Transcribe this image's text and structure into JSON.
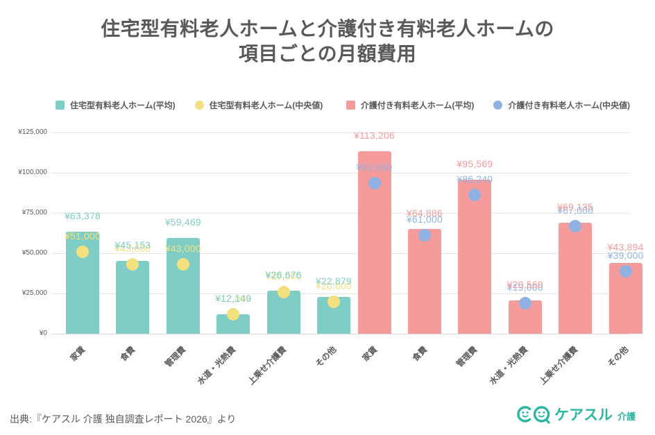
{
  "title": {
    "line1": "住宅型有料老人ホームと介護付き有料老人ホームの",
    "line2": "項目ごとの月額費用"
  },
  "colors": {
    "residential_avg": "#7ECEC5",
    "residential_median": "#F5E07F",
    "nursing_avg": "#F59B9B",
    "nursing_median": "#8FB2E2",
    "text": "#595959",
    "gridline": "#e4e4e4",
    "logo": "#2CB5A0"
  },
  "legend": [
    {
      "label": "住宅型有料老人ホーム(平均)",
      "shape": "square",
      "color": "#7ECEC5"
    },
    {
      "label": "住宅型有料老人ホーム(中央値)",
      "shape": "circle",
      "color": "#F5E07F"
    },
    {
      "label": "介護付き有料老人ホーム(平均)",
      "shape": "square",
      "color": "#F59B9B"
    },
    {
      "label": "介護付き有料老人ホーム(中央値)",
      "shape": "circle",
      "color": "#8FB2E2"
    }
  ],
  "chart_data": {
    "type": "bar",
    "title": "住宅型有料老人ホームと介護付き有料老人ホームの項目ごとの月額費用",
    "categories": [
      "家賃",
      "食費",
      "管理費",
      "水道・光熱費",
      "上乗せ介護費",
      "その他"
    ],
    "groups": [
      {
        "name": "住宅型有料老人ホーム",
        "bar_series": {
          "name": "住宅型有料老人ホーム(平均)",
          "color": "#7ECEC5",
          "values": [
            63378,
            45153,
            59469,
            12149,
            26676,
            22879
          ],
          "labels": [
            "¥63,378",
            "¥45,153",
            "¥59,469",
            "¥12,149",
            "¥26,676",
            "¥22,879"
          ]
        },
        "point_series": {
          "name": "住宅型有料老人ホーム(中央値)",
          "color": "#F5E07F",
          "values": [
            51000,
            43000,
            43000,
            12000,
            26000,
            20000
          ],
          "labels": [
            "¥51,000",
            "¥43,000",
            "¥43,000",
            "¥12,000",
            "¥26,000",
            "¥20,000"
          ]
        }
      },
      {
        "name": "介護付き有料老人ホーム",
        "bar_series": {
          "name": "介護付き有料老人ホーム(平均)",
          "color": "#F59B9B",
          "values": [
            113206,
            64886,
            95569,
            20560,
            69135,
            43894
          ],
          "labels": [
            "¥113,206",
            "¥64,886",
            "¥95,569",
            "¥20,560",
            "¥69,135",
            "¥43,894"
          ]
        },
        "point_series": {
          "name": "介護付き有料老人ホーム(中央値)",
          "color": "#8FB2E2",
          "values": [
            93650,
            61000,
            86240,
            19000,
            67000,
            39000
          ],
          "labels": [
            "¥93,650",
            "¥61,000",
            "¥86,240",
            "¥19,000",
            "¥67,000",
            "¥39,000"
          ]
        }
      }
    ],
    "y_axis": {
      "max": 125000,
      "values": [
        0,
        25000,
        50000,
        75000,
        100000,
        125000
      ],
      "ticks": [
        "¥0",
        "¥25,000",
        "¥50,000",
        "¥75,000",
        "¥100,000",
        "¥125,000"
      ]
    },
    "grid": true,
    "legend_position": "top",
    "x_label_rotation": -45
  },
  "footer": {
    "source": "出典:『ケアスル 介護 独自調査レポート 2026』より"
  },
  "logo": {
    "name": "ケアスル",
    "suffix": "介護"
  }
}
